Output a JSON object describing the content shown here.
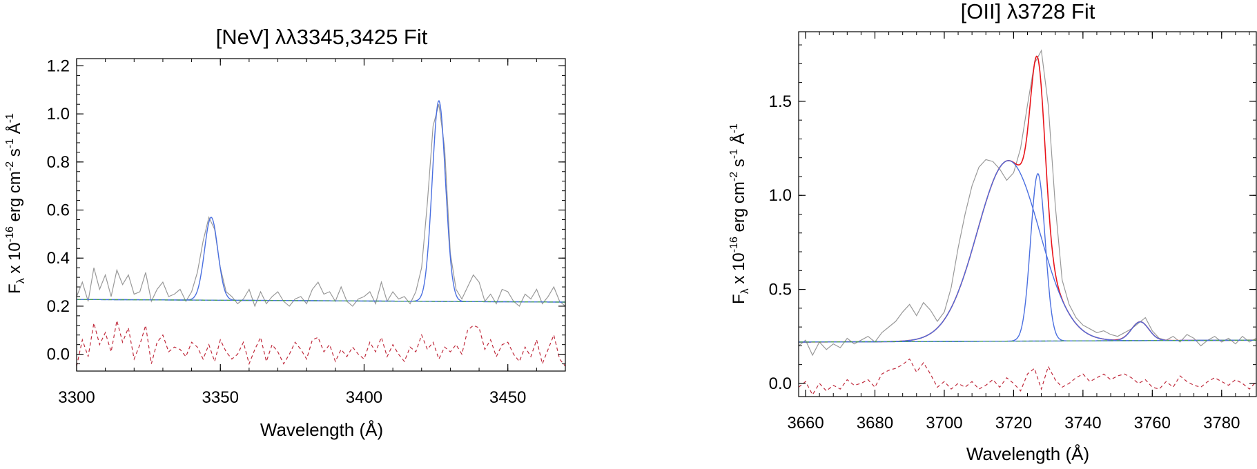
{
  "chart_data": [
    {
      "type": "line",
      "title": "[NeV] λλ3345,3425 Fit",
      "xlabel": "Wavelength (Å)",
      "ylabel": {
        "main": "F",
        "sub": "λ",
        "rest": [
          " x 10",
          "-16",
          " erg cm",
          "-2",
          " s",
          "-1",
          " Å",
          "-1"
        ]
      },
      "xlim": [
        3300,
        3470
      ],
      "ylim": [
        -0.07,
        1.23
      ],
      "xticks": [
        3300,
        3350,
        3400,
        3450
      ],
      "xtick_labels": [
        "3300",
        "3350",
        "3400",
        "3450"
      ],
      "yticks": [
        0.0,
        0.2,
        0.4,
        0.6,
        0.8,
        1.0,
        1.2
      ],
      "ytick_labels": [
        "0.0",
        "0.2",
        "0.4",
        "0.6",
        "0.8",
        "1.0",
        "1.2"
      ],
      "continuum": {
        "x": [
          3300,
          3470
        ],
        "y": [
          0.228,
          0.217
        ]
      },
      "components": [
        {
          "center": 3346.8,
          "amp": 0.345,
          "sigma": 2.3
        },
        {
          "center": 3426.0,
          "amp": 0.835,
          "sigma": 2.3
        }
      ],
      "total_fit": false,
      "data_spectrum": {
        "x": [
          3300,
          3302,
          3304,
          3306,
          3308,
          3310,
          3312,
          3314,
          3316,
          3318,
          3320,
          3322,
          3324,
          3326,
          3328,
          3330,
          3332,
          3334,
          3336,
          3338,
          3340,
          3342,
          3344,
          3346,
          3348,
          3350,
          3352,
          3354,
          3356,
          3358,
          3360,
          3362,
          3364,
          3366,
          3368,
          3370,
          3372,
          3374,
          3376,
          3378,
          3380,
          3382,
          3384,
          3386,
          3388,
          3390,
          3392,
          3394,
          3396,
          3398,
          3400,
          3402,
          3404,
          3406,
          3408,
          3410,
          3412,
          3414,
          3416,
          3418,
          3420,
          3422,
          3424,
          3426,
          3428,
          3430,
          3432,
          3434,
          3436,
          3438,
          3440,
          3442,
          3444,
          3446,
          3448,
          3450,
          3452,
          3454,
          3456,
          3458,
          3460,
          3462,
          3464,
          3466,
          3468,
          3470
        ],
        "y": [
          0.24,
          0.3,
          0.22,
          0.36,
          0.27,
          0.33,
          0.24,
          0.35,
          0.29,
          0.33,
          0.25,
          0.26,
          0.34,
          0.22,
          0.27,
          0.3,
          0.24,
          0.25,
          0.27,
          0.22,
          0.26,
          0.34,
          0.47,
          0.57,
          0.52,
          0.36,
          0.26,
          0.24,
          0.21,
          0.23,
          0.27,
          0.2,
          0.26,
          0.21,
          0.24,
          0.26,
          0.22,
          0.2,
          0.23,
          0.24,
          0.21,
          0.27,
          0.3,
          0.25,
          0.26,
          0.22,
          0.28,
          0.22,
          0.2,
          0.23,
          0.24,
          0.26,
          0.21,
          0.3,
          0.22,
          0.26,
          0.23,
          0.24,
          0.21,
          0.26,
          0.36,
          0.63,
          0.95,
          1.04,
          0.86,
          0.42,
          0.27,
          0.23,
          0.28,
          0.33,
          0.3,
          0.22,
          0.25,
          0.21,
          0.27,
          0.26,
          0.22,
          0.2,
          0.25,
          0.23,
          0.27,
          0.21,
          0.24,
          0.28,
          0.22,
          0.2
        ]
      },
      "residual": {
        "x": [
          3300,
          3302,
          3304,
          3306,
          3308,
          3310,
          3312,
          3314,
          3316,
          3318,
          3320,
          3322,
          3324,
          3326,
          3328,
          3330,
          3332,
          3334,
          3336,
          3338,
          3340,
          3342,
          3344,
          3346,
          3348,
          3350,
          3352,
          3354,
          3356,
          3358,
          3360,
          3362,
          3364,
          3366,
          3368,
          3370,
          3372,
          3374,
          3376,
          3378,
          3380,
          3382,
          3384,
          3386,
          3388,
          3390,
          3392,
          3394,
          3396,
          3398,
          3400,
          3402,
          3404,
          3406,
          3408,
          3410,
          3412,
          3414,
          3416,
          3418,
          3420,
          3422,
          3424,
          3426,
          3428,
          3430,
          3432,
          3434,
          3436,
          3438,
          3440,
          3442,
          3444,
          3446,
          3448,
          3450,
          3452,
          3454,
          3456,
          3458,
          3460,
          3462,
          3464,
          3466,
          3468,
          3470
        ],
        "y": [
          -0.05,
          0.06,
          -0.01,
          0.13,
          0.04,
          0.09,
          0.01,
          0.14,
          0.05,
          0.11,
          -0.02,
          0.04,
          0.12,
          -0.04,
          0.05,
          0.08,
          0.01,
          0.03,
          0.02,
          -0.01,
          0.05,
          0.03,
          -0.02,
          0.04,
          -0.03,
          0.06,
          0.01,
          -0.02,
          0.0,
          0.05,
          -0.04,
          0.02,
          0.07,
          -0.03,
          0.04,
          0.01,
          -0.04,
          0.0,
          0.05,
          0.02,
          -0.02,
          0.06,
          0.07,
          0.01,
          0.04,
          -0.03,
          0.02,
          -0.01,
          0.03,
          0.0,
          -0.02,
          0.05,
          0.01,
          0.07,
          -0.01,
          0.04,
          0.0,
          -0.03,
          0.03,
          0.01,
          0.08,
          0.02,
          0.05,
          -0.02,
          0.03,
          0.01,
          0.04,
          0.0,
          0.1,
          0.12,
          0.11,
          0.02,
          0.06,
          -0.01,
          0.04,
          0.05,
          0.0,
          -0.03,
          0.03,
          -0.01,
          0.06,
          -0.04,
          0.02,
          0.08,
          -0.02,
          -0.05
        ]
      }
    },
    {
      "type": "line",
      "title": "[OII] λ3728 Fit",
      "xlabel": "Wavelength (Å)",
      "ylabel": {
        "main": "F",
        "sub": "λ",
        "rest": [
          " x 10",
          "-16",
          " erg cm",
          "-2",
          " s",
          "-1",
          " Å",
          "-1"
        ]
      },
      "xlim": [
        3658,
        3790
      ],
      "ylim": [
        -0.07,
        1.87
      ],
      "xticks": [
        3660,
        3680,
        3700,
        3720,
        3740,
        3760,
        3780
      ],
      "xtick_labels": [
        "3660",
        "3680",
        "3700",
        "3720",
        "3740",
        "3760",
        "3780"
      ],
      "yticks": [
        0.0,
        0.5,
        1.0,
        1.5
      ],
      "ytick_labels": [
        "0.0",
        "0.5",
        "1.0",
        "1.5"
      ],
      "continuum": {
        "x": [
          3658,
          3790
        ],
        "y": [
          0.22,
          0.23
        ]
      },
      "components": [
        {
          "center": 3718.5,
          "amp": 0.96,
          "sigma": 9.0
        },
        {
          "center": 3727.0,
          "amp": 0.89,
          "sigma": 2.1
        },
        {
          "center": 3756.5,
          "amp": 0.1,
          "sigma": 2.5
        }
      ],
      "total_fit": true,
      "data_spectrum": {
        "x": [
          3658,
          3660,
          3662,
          3664,
          3666,
          3668,
          3670,
          3672,
          3674,
          3676,
          3678,
          3680,
          3682,
          3684,
          3686,
          3688,
          3690,
          3692,
          3694,
          3696,
          3698,
          3700,
          3702,
          3704,
          3706,
          3708,
          3710,
          3712,
          3714,
          3716,
          3718,
          3720,
          3722,
          3724,
          3726,
          3728,
          3730,
          3732,
          3734,
          3736,
          3738,
          3740,
          3742,
          3744,
          3746,
          3748,
          3750,
          3752,
          3754,
          3756,
          3758,
          3760,
          3762,
          3764,
          3766,
          3768,
          3770,
          3772,
          3774,
          3776,
          3778,
          3780,
          3782,
          3784,
          3786,
          3788,
          3790
        ],
        "y": [
          0.2,
          0.23,
          0.15,
          0.22,
          0.18,
          0.21,
          0.19,
          0.24,
          0.21,
          0.23,
          0.25,
          0.22,
          0.27,
          0.3,
          0.33,
          0.38,
          0.42,
          0.36,
          0.43,
          0.39,
          0.33,
          0.38,
          0.51,
          0.72,
          0.9,
          1.05,
          1.15,
          1.19,
          1.18,
          1.14,
          1.08,
          1.12,
          1.25,
          1.48,
          1.7,
          1.77,
          1.48,
          0.95,
          0.55,
          0.42,
          0.35,
          0.31,
          0.29,
          0.27,
          0.28,
          0.26,
          0.25,
          0.27,
          0.29,
          0.32,
          0.35,
          0.28,
          0.24,
          0.23,
          0.25,
          0.22,
          0.26,
          0.24,
          0.2,
          0.23,
          0.25,
          0.22,
          0.24,
          0.21,
          0.25,
          0.22,
          0.24
        ]
      },
      "residual": {
        "x": [
          3658,
          3660,
          3662,
          3664,
          3666,
          3668,
          3670,
          3672,
          3674,
          3676,
          3678,
          3680,
          3682,
          3684,
          3686,
          3688,
          3690,
          3692,
          3694,
          3696,
          3698,
          3700,
          3702,
          3704,
          3706,
          3708,
          3710,
          3712,
          3714,
          3716,
          3718,
          3720,
          3722,
          3724,
          3726,
          3728,
          3730,
          3732,
          3734,
          3736,
          3738,
          3740,
          3742,
          3744,
          3746,
          3748,
          3750,
          3752,
          3754,
          3756,
          3758,
          3760,
          3762,
          3764,
          3766,
          3768,
          3770,
          3772,
          3774,
          3776,
          3778,
          3780,
          3782,
          3784,
          3786,
          3788,
          3790
        ],
        "y": [
          -0.02,
          0.01,
          -0.06,
          0.0,
          -0.04,
          -0.01,
          -0.03,
          0.02,
          -0.01,
          0.0,
          0.02,
          -0.02,
          0.05,
          0.07,
          0.08,
          0.1,
          0.13,
          0.06,
          0.11,
          0.05,
          -0.02,
          0.01,
          -0.03,
          0.0,
          -0.02,
          0.01,
          -0.03,
          -0.01,
          0.02,
          -0.02,
          0.03,
          0.0,
          -0.04,
          0.05,
          0.08,
          -0.03,
          0.09,
          0.02,
          -0.02,
          0.0,
          0.03,
          0.05,
          0.01,
          0.03,
          0.05,
          0.02,
          0.04,
          0.05,
          0.03,
          0.0,
          0.02,
          -0.02,
          -0.03,
          0.01,
          -0.02,
          0.04,
          0.01,
          -0.01,
          -0.02,
          0.01,
          0.03,
          0.01,
          -0.01,
          0.02,
          0.0,
          -0.03,
          0.01
        ]
      }
    }
  ],
  "colors": {
    "data": "#999999",
    "component": "#4a6fe0",
    "total": "#e8141a",
    "continuum": "#49a64a",
    "residual": "#c02a3c",
    "axis": "#000000"
  }
}
